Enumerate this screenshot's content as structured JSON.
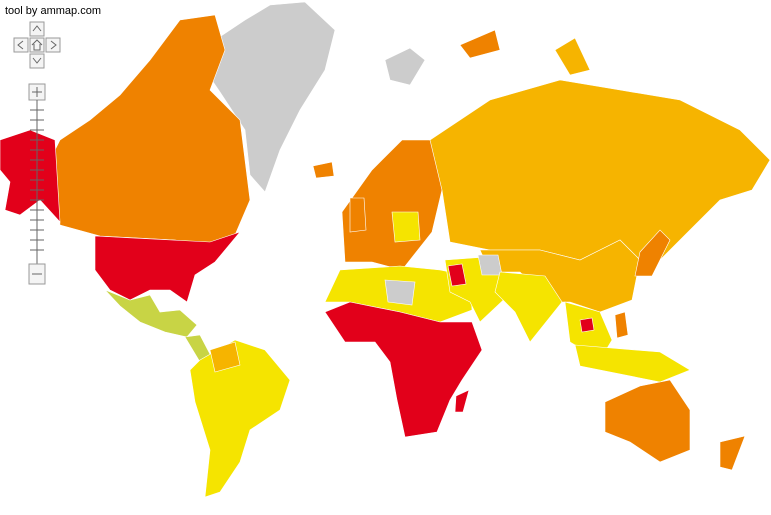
{
  "credit": "tool by ammap.com"
}
